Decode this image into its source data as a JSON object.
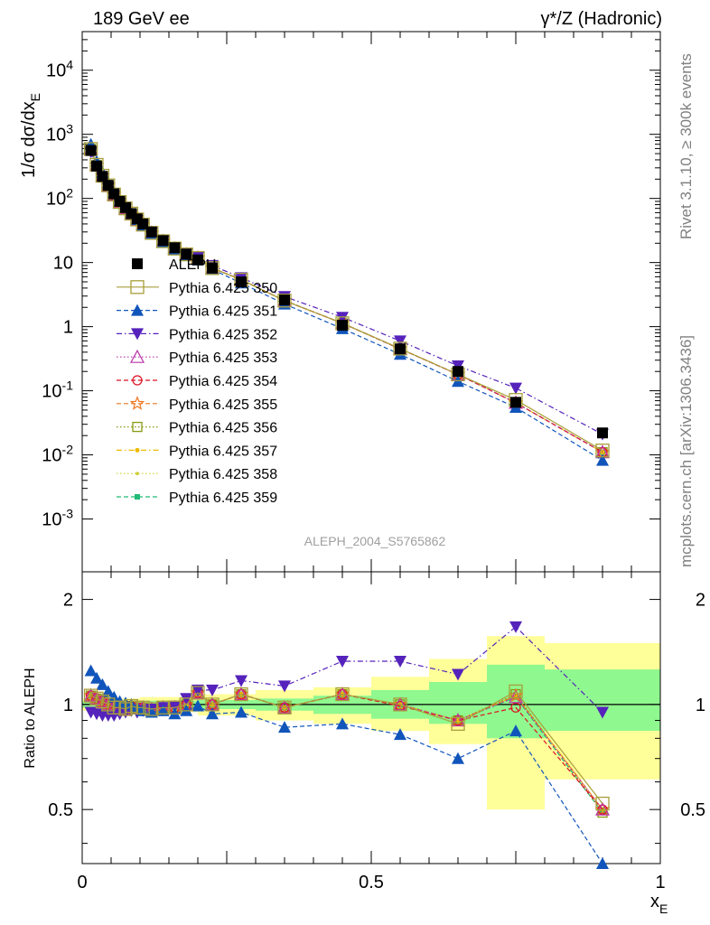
{
  "header": {
    "left": "189 GeV ee",
    "right": "γ*/Z (Hadronic)"
  },
  "side_labels": {
    "rivet": "Rivet 3.1.10, ≥ 300k events",
    "mcplots": "mcplots.cern.ch [arXiv:1306.3436]"
  },
  "analysis_label": "ALEPH_2004_S5765862",
  "colors": {
    "data": "#000000",
    "band_stat": "#8ff88f",
    "band_total": "#ffff99",
    "s350": "#a89f3a",
    "s351": "#1155bb",
    "s352": "#5522bb",
    "s353": "#bb33aa",
    "s354": "#dd1122",
    "s355": "#ee7722",
    "s356": "#889911",
    "s357": "#eebb00",
    "s358": "#cccc33",
    "s359": "#22bb77"
  },
  "chart_data": [
    {
      "type": "scatter",
      "panel": "main",
      "ylabel": "1/σ dσ/dx_E",
      "yscale": "log",
      "xlim": [
        0,
        1
      ],
      "ylim": [
        0.00015,
        40000
      ],
      "y_tick_labels": [
        "10^{-3}",
        "10^{-2}",
        "10^{-1}",
        "1",
        "10",
        "10^{2}",
        "10^{3}",
        "10^{4}"
      ],
      "legend_placement": "left",
      "x": [
        0.015,
        0.025,
        0.035,
        0.045,
        0.055,
        0.065,
        0.075,
        0.085,
        0.095,
        0.105,
        0.12,
        0.14,
        0.16,
        0.18,
        0.2,
        0.225,
        0.275,
        0.35,
        0.45,
        0.55,
        0.65,
        0.75,
        0.9
      ],
      "series": [
        {
          "name": "ALEPH",
          "key": "data",
          "marker": "square-filled",
          "line": "none",
          "values": [
            560,
            320,
            220,
            160,
            118,
            90,
            72,
            58,
            48,
            40,
            30,
            22,
            17,
            13.5,
            11,
            8.2,
            5,
            2.6,
            1.05,
            0.45,
            0.2,
            0.066,
            0.022
          ]
        },
        {
          "name": "Pythia 6.425 350",
          "key": "s350",
          "marker": "square-open",
          "line": "solid",
          "values": [
            590,
            334,
            226,
            160,
            115,
            88,
            70,
            58,
            47,
            39,
            29,
            21.5,
            16.5,
            13.4,
            11.8,
            8.2,
            5.4,
            2.55,
            1.13,
            0.455,
            0.18,
            0.072,
            0.0117
          ]
        },
        {
          "name": "Pythia 6.425 351",
          "key": "s351",
          "marker": "triangle-up-filled",
          "line": "dashed",
          "values": [
            700,
            380,
            255,
            175,
            124,
            92,
            73,
            58,
            47,
            38,
            28.5,
            21,
            16,
            13,
            11,
            7.8,
            4.8,
            2.25,
            0.93,
            0.37,
            0.14,
            0.055,
            0.0082
          ]
        },
        {
          "name": "Pythia 6.425 352",
          "key": "s352",
          "marker": "triangle-down-filled",
          "line": "dashdot",
          "values": [
            530,
            300,
            205,
            148,
            110,
            84,
            68,
            55,
            45.5,
            38,
            29,
            21.5,
            16.8,
            14,
            12,
            9,
            5.8,
            2.95,
            1.4,
            0.6,
            0.245,
            0.11,
            0.021
          ]
        },
        {
          "name": "Pythia 6.425 353",
          "key": "s353",
          "marker": "triangle-up-open",
          "line": "dotted",
          "values": [
            590,
            332,
            224,
            158,
            114,
            87,
            69.5,
            57,
            46.5,
            39,
            29,
            21.5,
            16.5,
            13.4,
            11.8,
            8.2,
            5.4,
            2.55,
            1.13,
            0.45,
            0.18,
            0.065,
            0.011
          ]
        },
        {
          "name": "Pythia 6.425 354",
          "key": "s354",
          "marker": "circle-open",
          "line": "dashed",
          "values": [
            590,
            332,
            224,
            158,
            114,
            87,
            69.5,
            57,
            46.5,
            39,
            29,
            21.5,
            16.5,
            13.4,
            11.8,
            8.2,
            5.4,
            2.55,
            1.13,
            0.45,
            0.18,
            0.065,
            0.011
          ]
        },
        {
          "name": "Pythia 6.425 355",
          "key": "s355",
          "marker": "star-open",
          "line": "dashed",
          "values": [
            590,
            332,
            224,
            158,
            114,
            87,
            69.5,
            57,
            46.5,
            39,
            29,
            21.5,
            16.5,
            13.4,
            11.8,
            8.2,
            5.4,
            2.55,
            1.13,
            0.45,
            0.18,
            0.065,
            0.011
          ]
        },
        {
          "name": "Pythia 6.425 356",
          "key": "s356",
          "marker": "square-open-small",
          "line": "dotted",
          "values": [
            590,
            332,
            224,
            158,
            114,
            87,
            69.5,
            57,
            46.5,
            39,
            29,
            21.5,
            16.5,
            13.4,
            11.8,
            8.2,
            5.4,
            2.55,
            1.13,
            0.45,
            0.18,
            0.065,
            0.011
          ]
        },
        {
          "name": "Pythia 6.425 357",
          "key": "s357",
          "marker": "dot",
          "line": "dashdot",
          "values": [
            590,
            332,
            224,
            158,
            114,
            87,
            69.5,
            57,
            46.5,
            39,
            29,
            21.5,
            16.5,
            13.4,
            11.8,
            8.2,
            5.4,
            2.55,
            1.13,
            0.45,
            0.18,
            0.065,
            0.011
          ]
        },
        {
          "name": "Pythia 6.425 358",
          "key": "s358",
          "marker": "dot-small",
          "line": "dotted",
          "values": [
            590,
            332,
            224,
            158,
            114,
            87,
            69.5,
            57,
            46.5,
            39,
            29,
            21.5,
            16.5,
            13.4,
            11.8,
            8.2,
            5.4,
            2.55,
            1.13,
            0.45,
            0.18,
            0.065,
            0.011
          ]
        },
        {
          "name": "Pythia 6.425 359",
          "key": "s359",
          "marker": "square-filled-small",
          "line": "dashed",
          "values": [
            590,
            332,
            224,
            158,
            114,
            87,
            69.5,
            57,
            46.5,
            39,
            29,
            21.5,
            16.5,
            13.4,
            11.8,
            8.2,
            5.4,
            2.55,
            1.13,
            0.45,
            0.18,
            0.065,
            0.011
          ]
        }
      ]
    },
    {
      "type": "line",
      "panel": "ratio",
      "xlabel": "x_E",
      "ylabel": "Ratio to ALEPH",
      "yscale": "log",
      "xlim": [
        0,
        1
      ],
      "ylim": [
        0.35,
        2.4
      ],
      "x_tick_labels": [
        "0",
        "0.5",
        "1"
      ],
      "y_tick_labels": [
        "0.5",
        "1",
        "2"
      ],
      "reference_line": 1,
      "bands": {
        "bins": [
          [
            0.0,
            0.1
          ],
          [
            0.1,
            0.2
          ],
          [
            0.2,
            0.3
          ],
          [
            0.3,
            0.4
          ],
          [
            0.4,
            0.5
          ],
          [
            0.5,
            0.6
          ],
          [
            0.6,
            0.7
          ],
          [
            0.7,
            0.8
          ],
          [
            0.8,
            1.0
          ]
        ],
        "stat": [
          [
            0.98,
            1.02
          ],
          [
            0.975,
            1.025
          ],
          [
            0.97,
            1.03
          ],
          [
            0.96,
            1.04
          ],
          [
            0.94,
            1.06
          ],
          [
            0.91,
            1.1
          ],
          [
            0.88,
            1.16
          ],
          [
            0.8,
            1.3
          ],
          [
            0.84,
            1.26
          ]
        ],
        "total": [
          [
            0.96,
            1.04
          ],
          [
            0.95,
            1.05
          ],
          [
            0.93,
            1.07
          ],
          [
            0.9,
            1.1
          ],
          [
            0.88,
            1.12
          ],
          [
            0.84,
            1.2
          ],
          [
            0.77,
            1.35
          ],
          [
            0.5,
            1.57
          ],
          [
            0.61,
            1.5
          ]
        ]
      },
      "x": [
        0.015,
        0.025,
        0.035,
        0.045,
        0.055,
        0.065,
        0.075,
        0.085,
        0.095,
        0.105,
        0.12,
        0.14,
        0.16,
        0.18,
        0.2,
        0.225,
        0.275,
        0.35,
        0.45,
        0.55,
        0.65,
        0.75,
        0.9
      ],
      "series": [
        {
          "name": "Pythia 6.425 350",
          "key": "s350",
          "values": [
            1.06,
            1.04,
            1.02,
            1.0,
            0.98,
            0.98,
            0.97,
            0.99,
            0.98,
            0.98,
            0.97,
            0.98,
            0.98,
            1.0,
            1.08,
            1.0,
            1.07,
            0.98,
            1.07,
            1.0,
            0.88,
            1.09,
            0.52
          ]
        },
        {
          "name": "Pythia 6.425 351",
          "key": "s351",
          "values": [
            1.25,
            1.19,
            1.14,
            1.09,
            1.05,
            1.02,
            1.01,
            1.0,
            0.98,
            0.96,
            0.95,
            0.96,
            0.94,
            0.96,
            0.99,
            0.94,
            0.95,
            0.86,
            0.88,
            0.82,
            0.7,
            0.84,
            0.35
          ]
        },
        {
          "name": "Pythia 6.425 352",
          "key": "s352",
          "values": [
            0.95,
            0.94,
            0.93,
            0.93,
            0.93,
            0.94,
            0.95,
            0.96,
            0.95,
            0.96,
            0.97,
            0.98,
            0.99,
            1.04,
            1.1,
            1.1,
            1.17,
            1.13,
            1.33,
            1.33,
            1.22,
            1.67,
            0.95
          ]
        },
        {
          "name": "Pythia 6.425 353",
          "key": "s353",
          "values": [
            1.06,
            1.04,
            1.02,
            1.0,
            0.98,
            0.98,
            0.97,
            0.99,
            0.98,
            0.98,
            0.97,
            0.98,
            0.98,
            1.0,
            1.08,
            1.0,
            1.07,
            0.98,
            1.07,
            1.0,
            0.9,
            1.05,
            0.5
          ]
        },
        {
          "name": "Pythia 6.425 354",
          "key": "s354",
          "values": [
            1.06,
            1.04,
            1.02,
            1.0,
            0.98,
            0.98,
            0.97,
            0.99,
            0.98,
            0.98,
            0.97,
            0.98,
            0.98,
            1.0,
            1.08,
            1.0,
            1.07,
            0.98,
            1.07,
            0.99,
            0.9,
            0.98,
            0.5
          ]
        },
        {
          "name": "Pythia 6.425 355",
          "key": "s355",
          "values": [
            1.06,
            1.04,
            1.02,
            1.0,
            0.98,
            0.98,
            0.97,
            0.99,
            0.98,
            0.98,
            0.97,
            0.98,
            0.98,
            1.0,
            1.08,
            1.0,
            1.07,
            0.98,
            1.07,
            1.0,
            0.9,
            1.06,
            0.5
          ]
        },
        {
          "name": "Pythia 6.425 356",
          "key": "s356",
          "values": [
            1.06,
            1.04,
            1.02,
            1.0,
            0.98,
            0.98,
            0.97,
            0.99,
            0.98,
            0.98,
            0.97,
            0.98,
            0.98,
            1.0,
            1.08,
            1.0,
            1.07,
            0.98,
            1.07,
            1.0,
            0.9,
            1.07,
            0.49
          ]
        },
        {
          "name": "Pythia 6.425 357",
          "key": "s357",
          "values": [
            1.06,
            1.04,
            1.02,
            1.0,
            0.98,
            0.98,
            0.97,
            0.99,
            0.98,
            0.98,
            0.97,
            0.98,
            0.98,
            1.0,
            1.08,
            1.0,
            1.07,
            0.98,
            1.07,
            1.0,
            0.9,
            1.06,
            0.5
          ]
        },
        {
          "name": "Pythia 6.425 358",
          "key": "s358",
          "values": [
            1.06,
            1.04,
            1.02,
            1.0,
            0.98,
            0.98,
            0.97,
            0.99,
            0.98,
            0.98,
            0.97,
            0.98,
            0.98,
            1.0,
            1.08,
            1.0,
            1.07,
            0.98,
            1.07,
            1.0,
            0.9,
            1.06,
            0.5
          ]
        },
        {
          "name": "Pythia 6.425 359",
          "key": "s359",
          "values": [
            1.06,
            1.04,
            1.02,
            1.0,
            0.98,
            0.98,
            0.97,
            0.99,
            0.98,
            0.98,
            0.97,
            0.98,
            0.98,
            1.0,
            1.08,
            1.0,
            1.07,
            0.98,
            1.07,
            1.0,
            0.9,
            1.05,
            0.49
          ]
        }
      ]
    }
  ]
}
